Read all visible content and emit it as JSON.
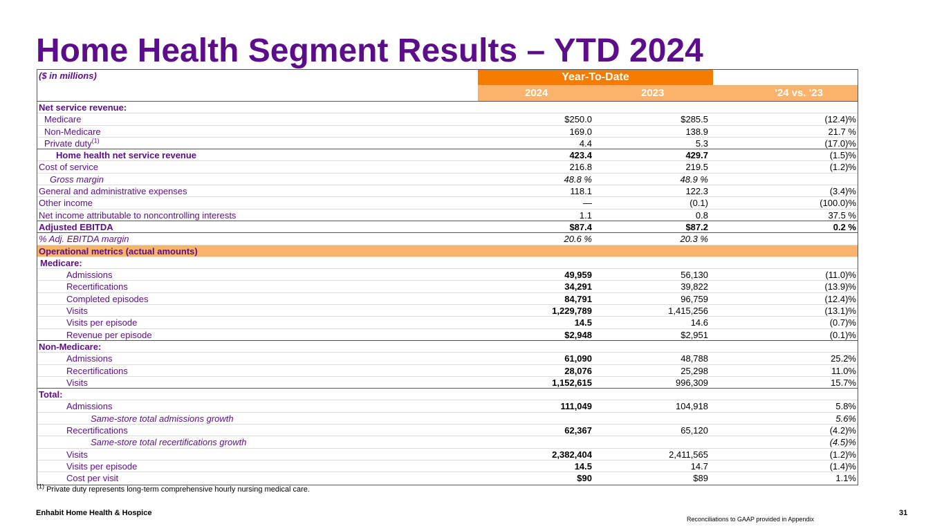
{
  "title": "Home Health Segment Results – YTD 2024",
  "header": {
    "units": "($ in millions)",
    "period": "Year-To-Date",
    "col1": "2024",
    "col2": "2023",
    "col3": "'24 vs. '23"
  },
  "rows": [
    {
      "label": "Net service revenue:",
      "v1": "",
      "v2": "",
      "v3": ""
    },
    {
      "label": "Medicare",
      "v1": "$250.0",
      "v2": "$285.5",
      "v3": "(12.4)%"
    },
    {
      "label": "Non-Medicare",
      "v1": "169.0",
      "v2": "138.9",
      "v3": "21.7 %"
    },
    {
      "label": "Private duty",
      "sup": "(1)",
      "v1": "4.4",
      "v2": "5.3",
      "v3": "(17.0)%"
    },
    {
      "label": "Home health net service revenue",
      "v1": "423.4",
      "v2": "429.7",
      "v3": "(1.5)%"
    },
    {
      "label": "Cost of service",
      "v1": "216.8",
      "v2": "219.5",
      "v3": "(1.2)%"
    },
    {
      "label": "Gross margin",
      "v1": "48.8 %",
      "v2": "48.9 %",
      "v3": ""
    },
    {
      "label": "General and administrative expenses",
      "v1": "118.1",
      "v2": "122.3",
      "v3": "(3.4)%"
    },
    {
      "label": "Other income",
      "v1": "—",
      "v2": "(0.1)",
      "v3": "(100.0)%"
    },
    {
      "label": "Net income attributable to noncontrolling interests",
      "v1": "1.1",
      "v2": "0.8",
      "v3": "37.5 %"
    },
    {
      "label": "Adjusted EBITDA",
      "v1": "$87.4",
      "v2": "$87.2",
      "v3": "0.2 %"
    },
    {
      "label": "% Adj. EBITDA margin",
      "v1": "20.6 %",
      "v2": "20.3 %",
      "v3": ""
    },
    {
      "label": "Operational metrics (actual amounts)",
      "v1": "",
      "v2": "",
      "v3": ""
    },
    {
      "label": "Medicare:",
      "v1": "",
      "v2": "",
      "v3": ""
    },
    {
      "label": "Admissions",
      "v1": "49,959",
      "v2": "56,130",
      "v3": "(11.0)%"
    },
    {
      "label": "Recertifications",
      "v1": "34,291",
      "v2": "39,822",
      "v3": "(13.9)%"
    },
    {
      "label": "Completed episodes",
      "v1": "84,791",
      "v2": "96,759",
      "v3": "(12.4)%"
    },
    {
      "label": "Visits",
      "v1": "1,229,789",
      "v2": "1,415,256",
      "v3": "(13.1)%"
    },
    {
      "label": "Visits per episode",
      "v1": "14.5",
      "v2": "14.6",
      "v3": "(0.7)%"
    },
    {
      "label": "Revenue per episode",
      "v1": "$2,948",
      "v2": "$2,951",
      "v3": "(0.1)%"
    },
    {
      "label": "Non-Medicare:",
      "v1": "",
      "v2": "",
      "v3": ""
    },
    {
      "label": "Admissions",
      "v1": "61,090",
      "v2": "48,788",
      "v3": "25.2%"
    },
    {
      "label": "Recertifications",
      "v1": "28,076",
      "v2": "25,298",
      "v3": "11.0%"
    },
    {
      "label": "Visits",
      "v1": "1,152,615",
      "v2": "996,309",
      "v3": "15.7%"
    },
    {
      "label": "Total:",
      "v1": "",
      "v2": "",
      "v3": ""
    },
    {
      "label": "Admissions",
      "v1": "111,049",
      "v2": "104,918",
      "v3": "5.8%"
    },
    {
      "label": "Same-store total admissions growth",
      "v1": "",
      "v2": "",
      "v3": "5.6%"
    },
    {
      "label": "Recertifications",
      "v1": "62,367",
      "v2": "65,120",
      "v3": "(4.2)%"
    },
    {
      "label": "Same-store total recertifications growth",
      "v1": "",
      "v2": "",
      "v3": "(4.5)%"
    },
    {
      "label": "Visits",
      "v1": "2,382,404",
      "v2": "2,411,565",
      "v3": "(1.2)%"
    },
    {
      "label": "Visits per episode",
      "v1": "14.5",
      "v2": "14.7",
      "v3": "(1.4)%"
    },
    {
      "label": "Cost per visit",
      "v1": "$90",
      "v2": "$89",
      "v3": "1.1%"
    }
  ],
  "footnote": {
    "marker": "(1)",
    "text": "Private duty represents long-term comprehensive hourly nursing medical care."
  },
  "footer": {
    "brand": "Enhabit Home Health & Hospice",
    "reconciliation": "Reconciliations to GAAP provided in Appendix",
    "page": "31"
  }
}
